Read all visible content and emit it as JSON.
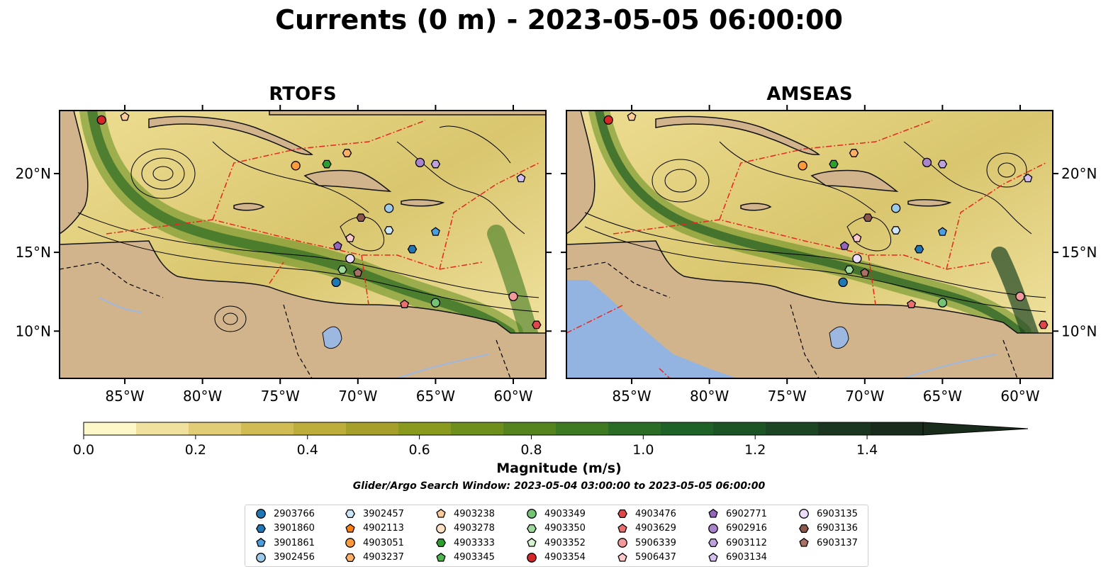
{
  "title": "Currents (0 m) - 2023-05-05 06:00:00",
  "panels": [
    {
      "title": "RTOFS"
    },
    {
      "title": "AMSEAS"
    }
  ],
  "axes": {
    "lon_labels": [
      "85°W",
      "80°W",
      "75°W",
      "70°W",
      "65°W",
      "60°W"
    ],
    "lat_labels": [
      "20°N",
      "15°N",
      "10°N"
    ]
  },
  "colorbar": {
    "title": "Magnitude (m/s)",
    "ticks": [
      "0.0",
      "0.2",
      "0.4",
      "0.6",
      "0.8",
      "1.0",
      "1.2",
      "1.4"
    ],
    "colors": [
      "#fdf8c8",
      "#f0e29e",
      "#e1cd76",
      "#d1bb55",
      "#bdae3c",
      "#a6a02a",
      "#8a9a1e",
      "#6f8f1c",
      "#55841f",
      "#3e7a22",
      "#2b6d26",
      "#1f6227",
      "#1c5426",
      "#1c4523",
      "#1b3620",
      "#192c1b"
    ]
  },
  "search_window": "Glider/Argo Search Window: 2023-05-04 03:00:00 to 2023-05-05 06:00:00",
  "legend": [
    {
      "id": "2903766",
      "color": "#1f77b4",
      "marker": "circle"
    },
    {
      "id": "3901860",
      "color": "#1f77b4",
      "marker": "hexagon"
    },
    {
      "id": "3901861",
      "color": "#4a9fe0",
      "marker": "pentagon"
    },
    {
      "id": "3902456",
      "color": "#9ecae9",
      "marker": "circle"
    },
    {
      "id": "3902457",
      "color": "#cde6f7",
      "marker": "hexagon"
    },
    {
      "id": "4902113",
      "color": "#ff7f0e",
      "marker": "pentagon"
    },
    {
      "id": "4903051",
      "color": "#ff9a3c",
      "marker": "circle"
    },
    {
      "id": "4903237",
      "color": "#ffb066",
      "marker": "hexagon"
    },
    {
      "id": "4903238",
      "color": "#ffcc99",
      "marker": "pentagon"
    },
    {
      "id": "4903278",
      "color": "#ffe2c4",
      "marker": "circle"
    },
    {
      "id": "4903333",
      "color": "#2ca02c",
      "marker": "hexagon"
    },
    {
      "id": "4903345",
      "color": "#4cb84c",
      "marker": "pentagon"
    },
    {
      "id": "4903349",
      "color": "#74c476",
      "marker": "circle"
    },
    {
      "id": "4903350",
      "color": "#a1d99b",
      "marker": "hexagon"
    },
    {
      "id": "4903352",
      "color": "#d4f2cc",
      "marker": "pentagon"
    },
    {
      "id": "4903354",
      "color": "#d62728",
      "marker": "circle"
    },
    {
      "id": "4903476",
      "color": "#e0474a",
      "marker": "hexagon"
    },
    {
      "id": "4903629",
      "color": "#ec6f70",
      "marker": "pentagon"
    },
    {
      "id": "5906339",
      "color": "#f29a9a",
      "marker": "circle"
    },
    {
      "id": "5906437",
      "color": "#fcc8c8",
      "marker": "pentagon"
    },
    {
      "id": "6902771",
      "color": "#9467bd",
      "marker": "pentagon"
    },
    {
      "id": "6902916",
      "color": "#a983cc",
      "marker": "circle"
    },
    {
      "id": "6903112",
      "color": "#bea0dc",
      "marker": "hexagon"
    },
    {
      "id": "6903134",
      "color": "#d3bff0",
      "marker": "pentagon"
    },
    {
      "id": "6903135",
      "color": "#ecdcfb",
      "marker": "circle"
    },
    {
      "id": "6903136",
      "color": "#8c564b",
      "marker": "hexagon"
    },
    {
      "id": "6903137",
      "color": "#a87164",
      "marker": "pentagon"
    }
  ],
  "platform_positions": [
    {
      "id": "4903354",
      "lon": -86.5,
      "lat": 23.4
    },
    {
      "id": "4903238",
      "lon": -85.0,
      "lat": 23.6
    },
    {
      "id": "4903051",
      "lon": -74.0,
      "lat": 20.5
    },
    {
      "id": "4903333",
      "lon": -72.0,
      "lat": 20.6
    },
    {
      "id": "4903237",
      "lon": -70.7,
      "lat": 21.3
    },
    {
      "id": "6902916",
      "lon": -66.0,
      "lat": 20.7
    },
    {
      "id": "6903112",
      "lon": -65.0,
      "lat": 20.6
    },
    {
      "id": "6903134",
      "lon": -59.5,
      "lat": 19.7
    },
    {
      "id": "3902456",
      "lon": -68.0,
      "lat": 17.8
    },
    {
      "id": "6903136",
      "lon": -69.8,
      "lat": 17.2
    },
    {
      "id": "3902457",
      "lon": -68.0,
      "lat": 16.4
    },
    {
      "id": "3901861",
      "lon": -65.0,
      "lat": 16.3
    },
    {
      "id": "5906437",
      "lon": -70.5,
      "lat": 15.9
    },
    {
      "id": "6902771",
      "lon": -71.3,
      "lat": 15.4
    },
    {
      "id": "3901860",
      "lon": -66.5,
      "lat": 15.2
    },
    {
      "id": "6903135",
      "lon": -70.5,
      "lat": 14.6
    },
    {
      "id": "4903350",
      "lon": -71.0,
      "lat": 13.9
    },
    {
      "id": "6903137",
      "lon": -70.0,
      "lat": 13.7
    },
    {
      "id": "2903766",
      "lon": -71.4,
      "lat": 13.1
    },
    {
      "id": "5906339",
      "lon": -60.0,
      "lat": 12.2
    },
    {
      "id": "4903629",
      "lon": -67.0,
      "lat": 11.7
    },
    {
      "id": "4903349",
      "lon": -65.0,
      "lat": 11.8
    },
    {
      "id": "4903476",
      "lon": -58.5,
      "lat": 10.4
    }
  ]
}
